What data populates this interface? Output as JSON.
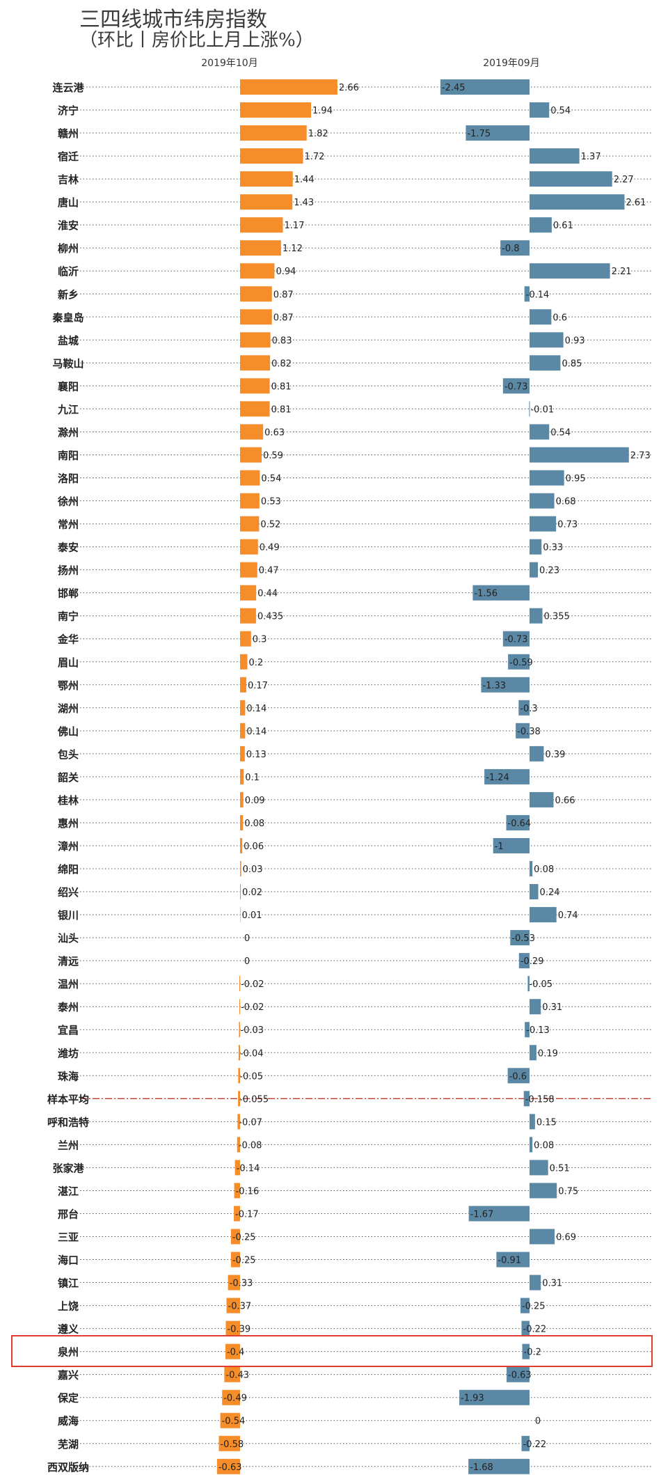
{
  "chart_data": {
    "type": "bar",
    "title": "三四线城市纬房指数",
    "subtitle": "（环比丨房价比上月上涨%）",
    "panels": [
      "2019年10月",
      "2019年09月"
    ],
    "categories": [
      "连云港",
      "济宁",
      "赣州",
      "宿迁",
      "吉林",
      "唐山",
      "淮安",
      "柳州",
      "临沂",
      "新乡",
      "秦皇岛",
      "盐城",
      "马鞍山",
      "襄阳",
      "九江",
      "滁州",
      "南阳",
      "洛阳",
      "徐州",
      "常州",
      "泰安",
      "扬州",
      "邯郸",
      "南宁",
      "金华",
      "眉山",
      "鄂州",
      "湖州",
      "佛山",
      "包头",
      "韶关",
      "桂林",
      "惠州",
      "漳州",
      "绵阳",
      "绍兴",
      "银川",
      "汕头",
      "清远",
      "温州",
      "泰州",
      "宜昌",
      "潍坊",
      "珠海",
      "样本平均",
      "呼和浩特",
      "兰州",
      "张家港",
      "湛江",
      "邢台",
      "三亚",
      "海口",
      "镇江",
      "上饶",
      "遵义",
      "泉州",
      "嘉兴",
      "保定",
      "威海",
      "芜湖",
      "西双版纳"
    ],
    "series": [
      {
        "name": "2019年10月",
        "color": "#f48d2a",
        "values": [
          2.66,
          1.94,
          1.82,
          1.72,
          1.44,
          1.43,
          1.17,
          1.12,
          0.94,
          0.87,
          0.87,
          0.83,
          0.82,
          0.81,
          0.81,
          0.63,
          0.59,
          0.54,
          0.53,
          0.52,
          0.49,
          0.47,
          0.44,
          0.435,
          0.3,
          0.2,
          0.17,
          0.14,
          0.14,
          0.13,
          0.1,
          0.09,
          0.08,
          0.06,
          0.03,
          0.02,
          0.01,
          0,
          0,
          -0.02,
          -0.02,
          -0.03,
          -0.04,
          -0.05,
          -0.055,
          -0.07,
          -0.08,
          -0.14,
          -0.16,
          -0.17,
          -0.25,
          -0.25,
          -0.33,
          -0.37,
          -0.39,
          -0.4,
          -0.43,
          -0.49,
          -0.54,
          -0.58,
          -0.63
        ]
      },
      {
        "name": "2019年09月",
        "color": "#5a88a5",
        "values": [
          -2.45,
          0.54,
          -1.75,
          1.37,
          2.27,
          2.61,
          0.61,
          -0.8,
          2.21,
          -0.14,
          0.6,
          0.93,
          0.85,
          -0.73,
          -0.01,
          0.54,
          2.73,
          0.95,
          0.68,
          0.73,
          0.33,
          0.23,
          -1.56,
          0.355,
          -0.73,
          -0.59,
          -1.33,
          -0.3,
          -0.38,
          0.39,
          -1.24,
          0.66,
          -0.64,
          -1,
          0.08,
          0.24,
          0.74,
          -0.53,
          -0.29,
          -0.05,
          0.31,
          -0.13,
          0.19,
          -0.6,
          -0.158,
          0.15,
          0.08,
          0.51,
          0.75,
          -1.67,
          0.69,
          -0.91,
          0.31,
          -0.25,
          -0.22,
          -0.2,
          -0.63,
          -1.93,
          0,
          -0.22,
          -1.68
        ]
      }
    ],
    "labels": {
      "2019年10月": [
        "2.66",
        "1.94",
        "1.82",
        "1.72",
        "1.44",
        "1.43",
        "1.17",
        "1.12",
        "0.94",
        "0.87",
        "0.87",
        "0.83",
        "0.82",
        "0.81",
        "0.81",
        "0.63",
        "0.59",
        "0.54",
        "0.53",
        "0.52",
        "0.49",
        "0.47",
        "0.44",
        "0.435",
        "0.3",
        "0.2",
        "0.17",
        "0.14",
        "0.14",
        "0.13",
        "0.1",
        "0.09",
        "0.08",
        "0.06",
        "0.03",
        "0.02",
        "0.01",
        "0",
        "0",
        "-0.02",
        "-0.02",
        "-0.03",
        "-0.04",
        "-0.05",
        "-0.055",
        "-0.07",
        "-0.08",
        "-0.14",
        "-0.16",
        "-0.17",
        "-0.25",
        "-0.25",
        "-0.33",
        "-0.37",
        "-0.39",
        "-0.4",
        "-0.43",
        "-0.49",
        "-0.54",
        "-0.58",
        "-0.63"
      ],
      "2019年09月": [
        "-2.45",
        "0.54",
        "-1.75",
        "1.37",
        "2.27",
        "2.61",
        "0.61",
        "-0.8",
        "2.21",
        "-0.14",
        "0.6",
        "0.93",
        "0.85",
        "-0.73",
        "-0.01",
        "0.54",
        "2.73",
        "0.95",
        "0.68",
        "0.73",
        "0.33",
        "0.23",
        "-1.56",
        "0.355",
        "-0.73",
        "-0.59",
        "-1.33",
        "-0.3",
        "-0.38",
        "0.39",
        "-1.24",
        "0.66",
        "-0.64",
        "-1",
        "0.08",
        "0.24",
        "0.74",
        "-0.53",
        "-0.29",
        "-0.05",
        "0.31",
        "-0.13",
        "0.19",
        "-0.6",
        "-0.158",
        "0.15",
        "0.08",
        "0.51",
        "0.75",
        "-1.67",
        "0.69",
        "-0.91",
        "0.31",
        "-0.25",
        "-0.22",
        "-0.2",
        "-0.63",
        "-1.93",
        "0",
        "-0.22",
        "-1.68"
      ]
    },
    "average_row": "样本平均",
    "highlighted_row": "泉州",
    "colors": {
      "average_line": "#c0392b",
      "highlight_box": "#e03c31",
      "gridline": "#555555"
    }
  }
}
